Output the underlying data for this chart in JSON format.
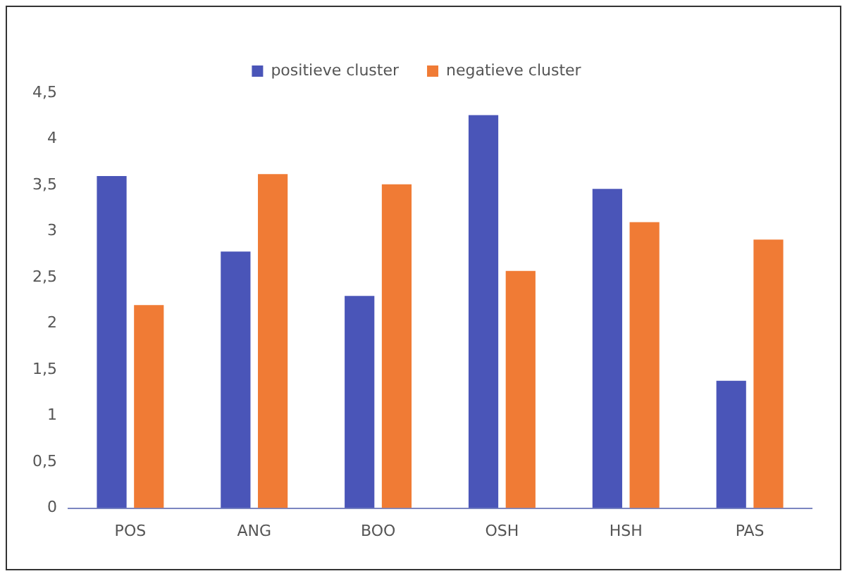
{
  "chart_data": {
    "type": "bar",
    "categories": [
      "POS",
      "ANG",
      "BOO",
      "OSH",
      "HSH",
      "PAS"
    ],
    "series": [
      {
        "name": "positieve cluster",
        "color": "#4a55b8",
        "values": [
          3.6,
          2.78,
          2.3,
          4.26,
          3.46,
          1.38
        ]
      },
      {
        "name": "negatieve cluster",
        "color": "#f07b35",
        "values": [
          2.2,
          3.62,
          3.51,
          2.57,
          3.1,
          2.91
        ]
      }
    ],
    "ylim": [
      0,
      4.5
    ],
    "yticks": [
      0,
      {
        "value": 0.5,
        "label": "0,5"
      },
      1,
      {
        "value": 1.5,
        "label": "1,5"
      },
      2,
      {
        "value": 2.5,
        "label": "2,5"
      },
      3,
      {
        "value": 3.5,
        "label": "3,5"
      },
      4,
      {
        "value": 4.5,
        "label": "4,5"
      }
    ],
    "grid": false,
    "legend": "top"
  }
}
